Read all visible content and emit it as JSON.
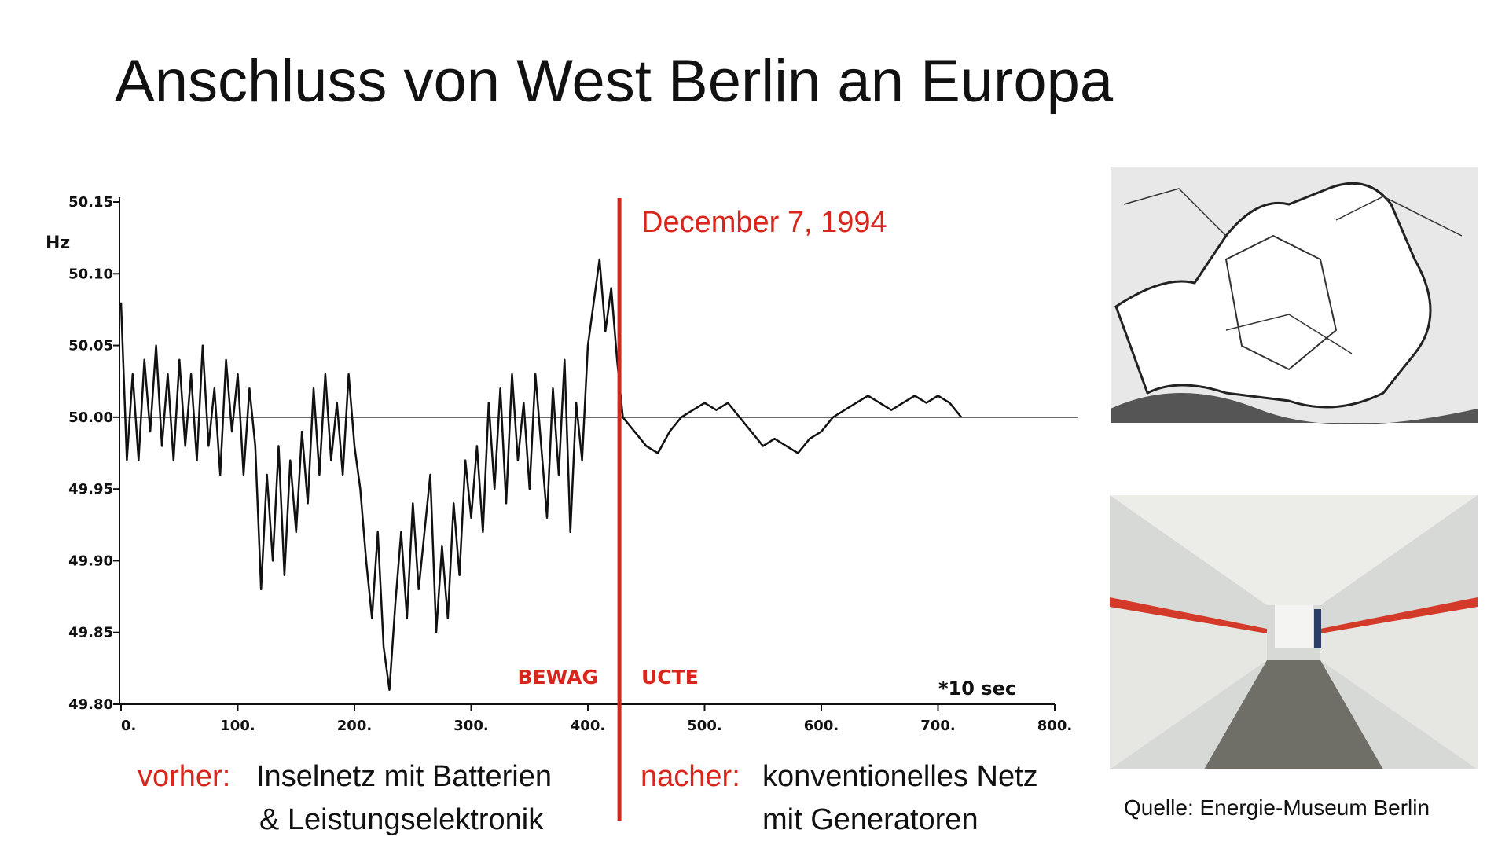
{
  "title": "Anschluss von West Berlin an Europa",
  "chart_data": {
    "type": "line",
    "y_label": "Hz",
    "x_label": "*10 sec",
    "x": [
      0,
      5,
      10,
      15,
      20,
      25,
      30,
      35,
      40,
      45,
      50,
      55,
      60,
      65,
      70,
      75,
      80,
      85,
      90,
      95,
      100,
      105,
      110,
      115,
      120,
      125,
      130,
      135,
      140,
      145,
      150,
      155,
      160,
      165,
      170,
      175,
      180,
      185,
      190,
      195,
      200,
      205,
      210,
      215,
      220,
      225,
      230,
      235,
      240,
      245,
      250,
      255,
      260,
      265,
      270,
      275,
      280,
      285,
      290,
      295,
      300,
      305,
      310,
      315,
      320,
      325,
      330,
      335,
      340,
      345,
      350,
      355,
      360,
      365,
      370,
      375,
      380,
      385,
      390,
      395,
      400,
      405,
      410,
      415,
      420,
      425,
      430,
      440,
      450,
      460,
      470,
      480,
      490,
      500,
      510,
      520,
      530,
      540,
      550,
      560,
      570,
      580,
      590,
      600,
      610,
      620,
      630,
      640,
      650,
      660,
      670,
      680,
      690,
      700,
      710,
      720
    ],
    "values": [
      50.08,
      49.97,
      50.03,
      49.97,
      50.04,
      49.99,
      50.05,
      49.98,
      50.03,
      49.97,
      50.04,
      49.98,
      50.03,
      49.97,
      50.05,
      49.98,
      50.02,
      49.96,
      50.04,
      49.99,
      50.03,
      49.96,
      50.02,
      49.98,
      49.88,
      49.96,
      49.9,
      49.98,
      49.89,
      49.97,
      49.92,
      49.99,
      49.94,
      50.02,
      49.96,
      50.03,
      49.97,
      50.01,
      49.96,
      50.03,
      49.98,
      49.95,
      49.9,
      49.86,
      49.92,
      49.84,
      49.81,
      49.87,
      49.92,
      49.86,
      49.94,
      49.88,
      49.92,
      49.96,
      49.85,
      49.91,
      49.86,
      49.94,
      49.89,
      49.97,
      49.93,
      49.98,
      49.92,
      50.01,
      49.95,
      50.02,
      49.94,
      50.03,
      49.97,
      50.01,
      49.95,
      50.03,
      49.98,
      49.93,
      50.02,
      49.96,
      50.04,
      49.92,
      50.01,
      49.97,
      50.05,
      50.08,
      50.11,
      50.06,
      50.09,
      50.04,
      50.0,
      49.99,
      49.98,
      49.975,
      49.99,
      50.0,
      50.005,
      50.01,
      50.005,
      50.01,
      50.0,
      49.99,
      49.98,
      49.985,
      49.98,
      49.975,
      49.985,
      49.99,
      50.0,
      50.005,
      50.01,
      50.015,
      50.01,
      50.005,
      50.01,
      50.015,
      50.01,
      50.015,
      50.01,
      50.0
    ],
    "color": "#111111",
    "xlim": [
      0,
      800
    ],
    "xticks": [
      {
        "value": 0,
        "label": "0."
      },
      {
        "value": 100,
        "label": "100."
      },
      {
        "value": 200,
        "label": "200."
      },
      {
        "value": 300,
        "label": "300."
      },
      {
        "value": 400,
        "label": "400."
      },
      {
        "value": 500,
        "label": "500."
      },
      {
        "value": 600,
        "label": "600."
      },
      {
        "value": 700,
        "label": "700."
      },
      {
        "value": 800,
        "label": "800."
      }
    ],
    "ylim": [
      49.8,
      50.15
    ],
    "yticks": [
      {
        "value": 49.8,
        "label": "49.80"
      },
      49.85,
      {
        "value": 49.9,
        "label": "49.90"
      },
      49.95,
      {
        "value": 50,
        "label": "50.00"
      },
      50.05,
      {
        "value": 50.1,
        "label": "50.10"
      },
      50.15
    ],
    "reference_y": 50,
    "event_x": 427,
    "event_color": "#d9261c",
    "event_label": "December 7, 1994",
    "left_region": "BEWAG",
    "right_region": "UCTE"
  },
  "captions": {
    "before": {
      "key": "vorher:",
      "lines": [
        "Inselnetz mit Batterien",
        "& Leistungselektronik"
      ]
    },
    "after": {
      "key": "nacher:",
      "lines": [
        "konventionelles Netz",
        "mit Generatoren"
      ]
    }
  },
  "source": "Quelle: Energie-Museum Berlin"
}
